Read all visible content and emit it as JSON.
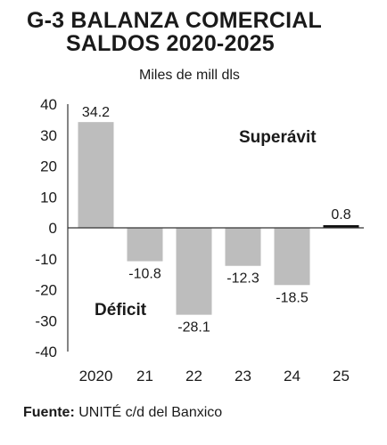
{
  "header": {
    "title_line1": "G-3 BALANZA COMERCIAL",
    "title_line2": "SALDOS 2020-2025",
    "units": "Miles de mill dls"
  },
  "footer": {
    "source_label": "Fuente:",
    "source_text": " UNITÉ c/d del Banxico"
  },
  "chart_data": {
    "type": "bar",
    "categories": [
      "2020",
      "21",
      "22",
      "23",
      "24",
      "25"
    ],
    "values": [
      34.2,
      -10.8,
      -28.1,
      -12.3,
      -18.5,
      0.8
    ],
    "value_labels": [
      "34.2",
      "-10.8",
      "-28.1",
      "-12.3",
      "-18.5",
      "0.8"
    ],
    "ylim": [
      -40,
      40
    ],
    "yticks": [
      40,
      30,
      20,
      10,
      0,
      -10,
      -20,
      -30,
      -40
    ],
    "annotations": {
      "positive": "Superávit",
      "negative": "Déficit"
    },
    "colors": {
      "bar": "#bdbdbd",
      "highlight": "#111111",
      "axis": "#333333"
    },
    "highlight_index": 5,
    "grid": false
  }
}
